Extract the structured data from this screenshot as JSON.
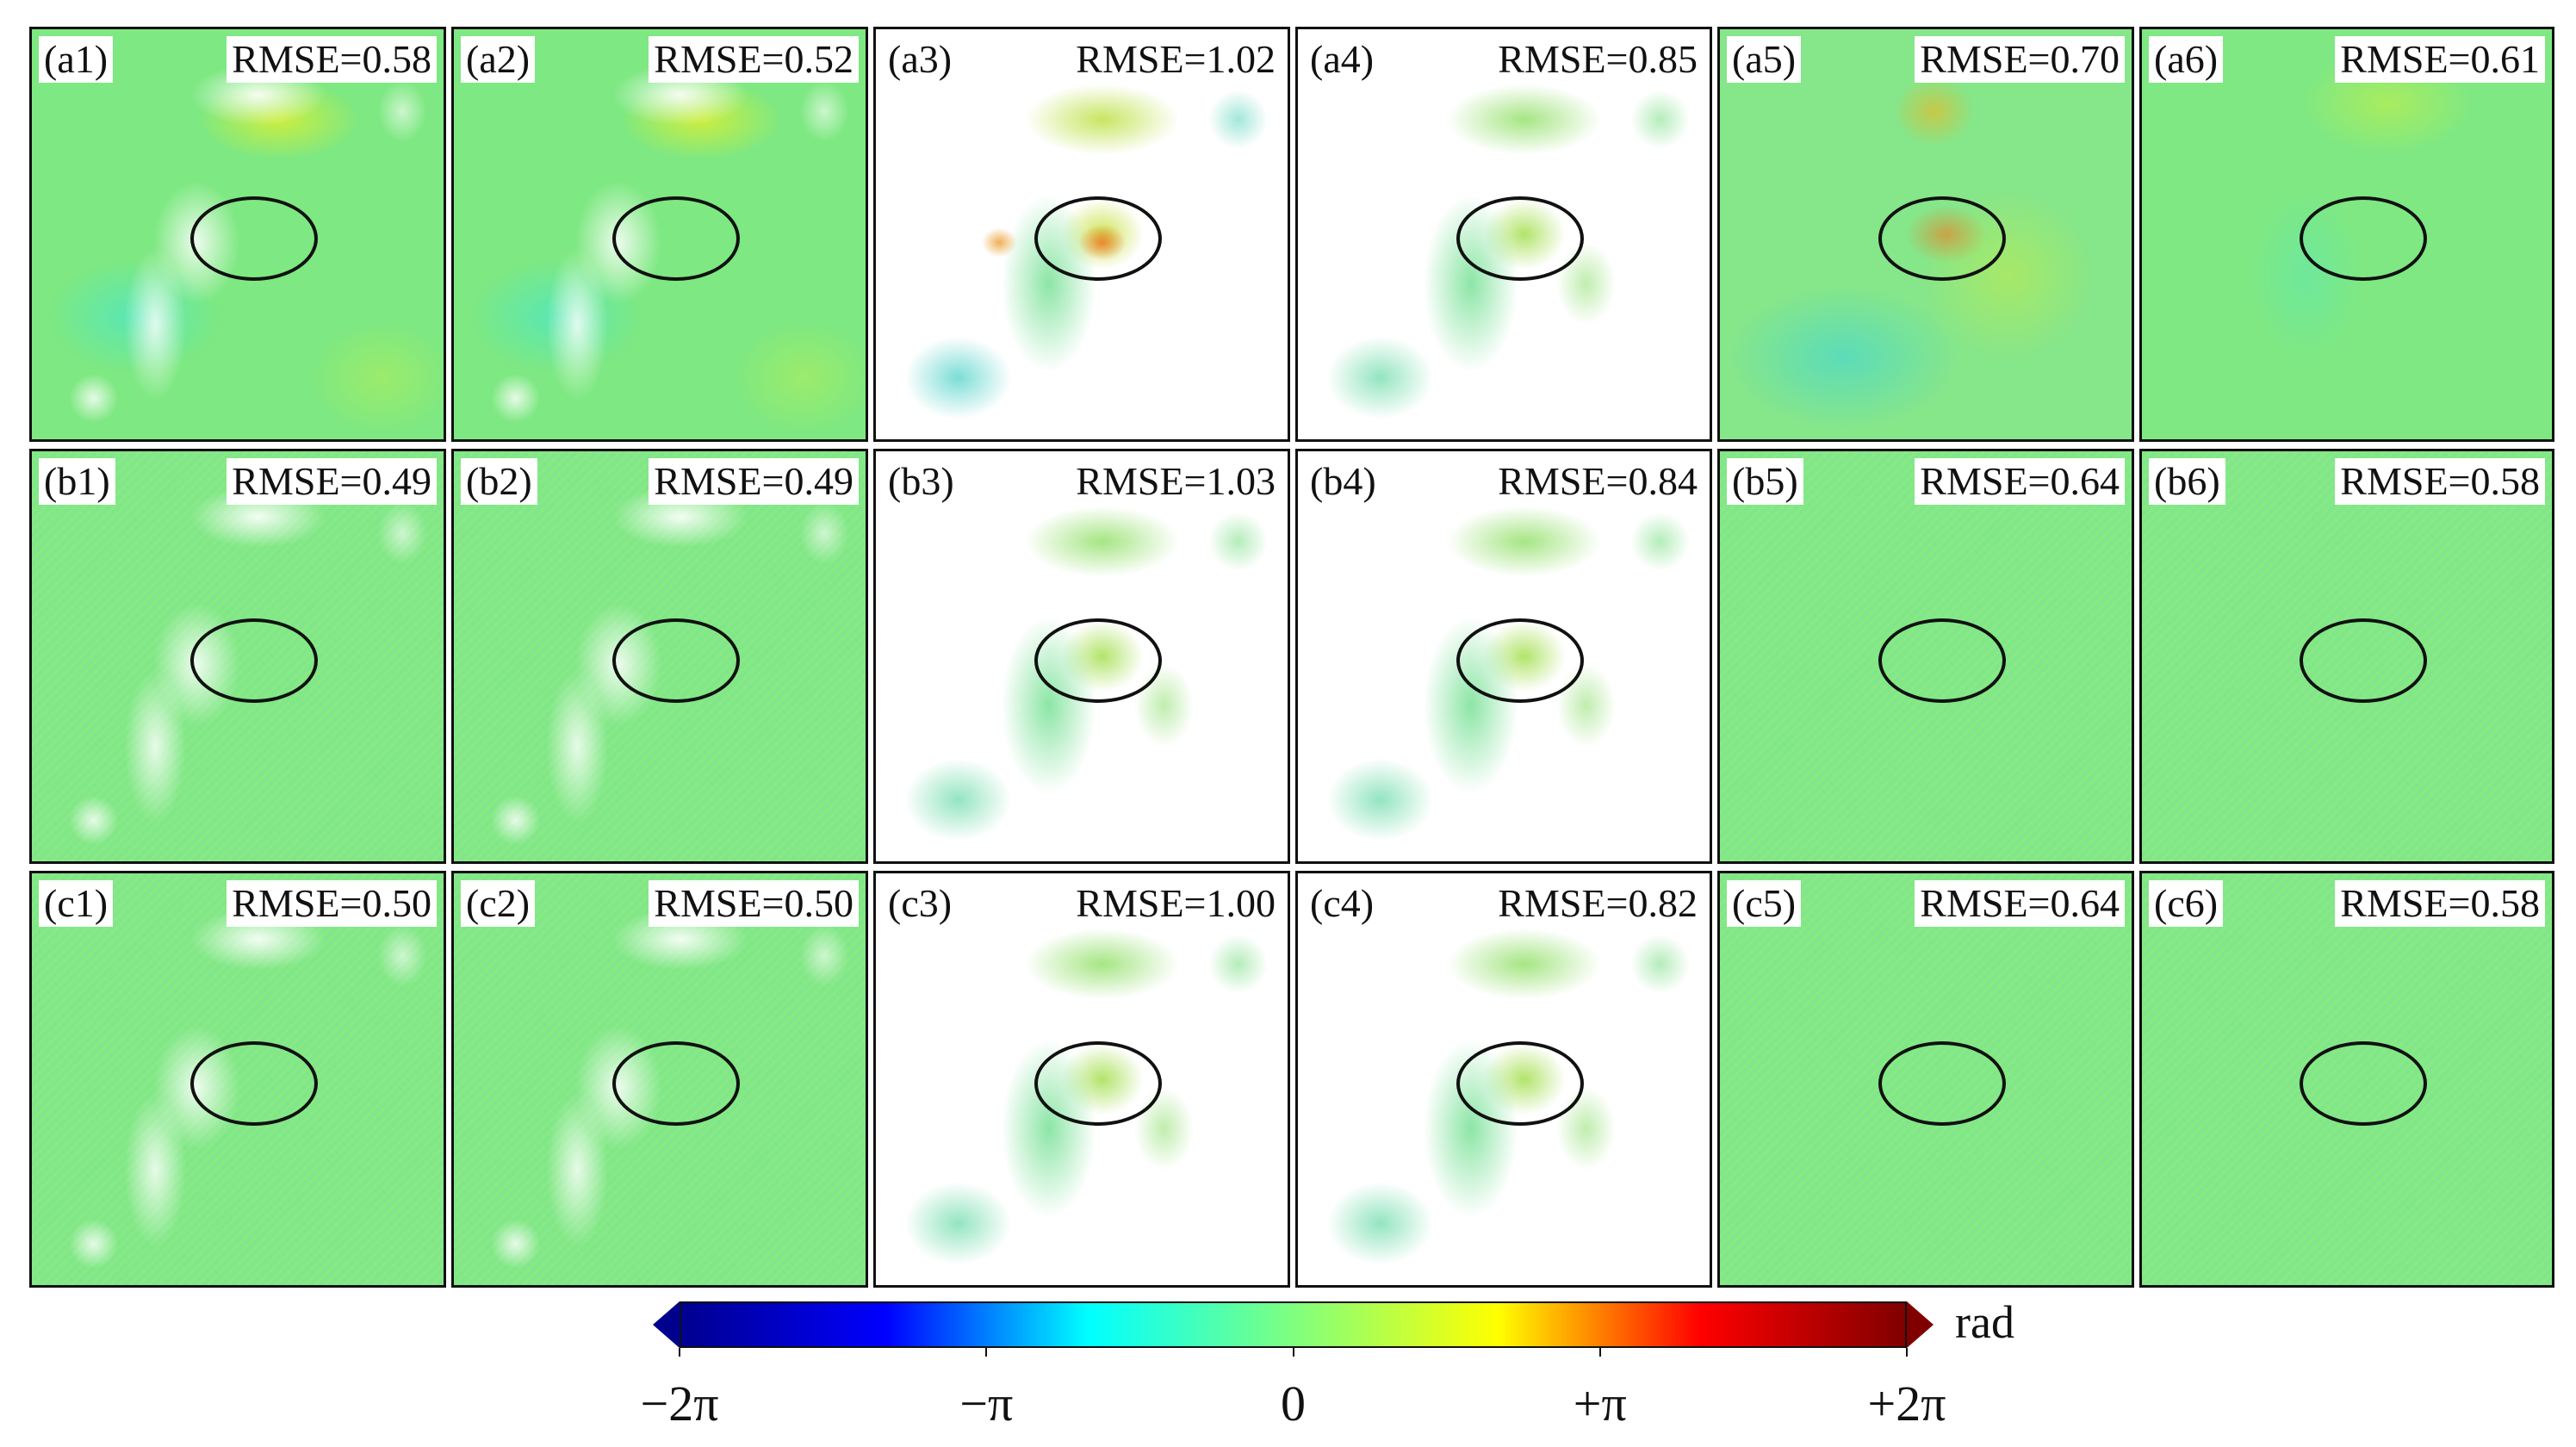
{
  "chart_data": {
    "type": "heatmap",
    "title": "",
    "layout": {
      "rows": 3,
      "cols": 6
    },
    "panels": [
      {
        "id": "(a1)",
        "rmse": "RMSE=0.58",
        "rmse_value": 0.58,
        "style": "full",
        "holes": true
      },
      {
        "id": "(a2)",
        "rmse": "RMSE=0.52",
        "rmse_value": 0.52,
        "style": "full",
        "holes": true
      },
      {
        "id": "(a3)",
        "rmse": "RMSE=1.02",
        "rmse_value": 1.02,
        "style": "sparse hot",
        "holes": false
      },
      {
        "id": "(a4)",
        "rmse": "RMSE=0.85",
        "rmse_value": 0.85,
        "style": "sparse",
        "holes": false
      },
      {
        "id": "(a5)",
        "rmse": "RMSE=0.70",
        "rmse_value": 0.7,
        "style": "full warm",
        "holes": false
      },
      {
        "id": "(a6)",
        "rmse": "RMSE=0.61",
        "rmse_value": 0.61,
        "style": "full clean",
        "holes": false
      },
      {
        "id": "(b1)",
        "rmse": "RMSE=0.49",
        "rmse_value": 0.49,
        "style": "full flat",
        "holes": true
      },
      {
        "id": "(b2)",
        "rmse": "RMSE=0.49",
        "rmse_value": 0.49,
        "style": "full flat",
        "holes": true
      },
      {
        "id": "(b3)",
        "rmse": "RMSE=1.03",
        "rmse_value": 1.03,
        "style": "sparse",
        "holes": false
      },
      {
        "id": "(b4)",
        "rmse": "RMSE=0.84",
        "rmse_value": 0.84,
        "style": "sparse",
        "holes": false
      },
      {
        "id": "(b5)",
        "rmse": "RMSE=0.64",
        "rmse_value": 0.64,
        "style": "full flat",
        "holes": false
      },
      {
        "id": "(b6)",
        "rmse": "RMSE=0.58",
        "rmse_value": 0.58,
        "style": "full flat",
        "holes": false
      },
      {
        "id": "(c1)",
        "rmse": "RMSE=0.50",
        "rmse_value": 0.5,
        "style": "full flat",
        "holes": true
      },
      {
        "id": "(c2)",
        "rmse": "RMSE=0.50",
        "rmse_value": 0.5,
        "style": "full flat",
        "holes": true
      },
      {
        "id": "(c3)",
        "rmse": "RMSE=1.00",
        "rmse_value": 1.0,
        "style": "sparse",
        "holes": false
      },
      {
        "id": "(c4)",
        "rmse": "RMSE=0.82",
        "rmse_value": 0.82,
        "style": "sparse",
        "holes": false
      },
      {
        "id": "(c5)",
        "rmse": "RMSE=0.64",
        "rmse_value": 0.64,
        "style": "full flat",
        "holes": false
      },
      {
        "id": "(c6)",
        "rmse": "RMSE=0.58",
        "rmse_value": 0.58,
        "style": "full flat",
        "holes": false
      }
    ],
    "colorbar": {
      "colormap": "jet",
      "range": [
        "-2π",
        "+2π"
      ],
      "ticks": [
        "−2π",
        "−π",
        "0",
        "+π",
        "+2π"
      ],
      "unit": "rad",
      "extend": "both",
      "colors": [
        "#00008f",
        "#0000ff",
        "#00ffff",
        "#7fff7f",
        "#ffff00",
        "#ff0000",
        "#800000"
      ]
    },
    "annotations": [
      "black ellipse at center of each panel"
    ]
  }
}
